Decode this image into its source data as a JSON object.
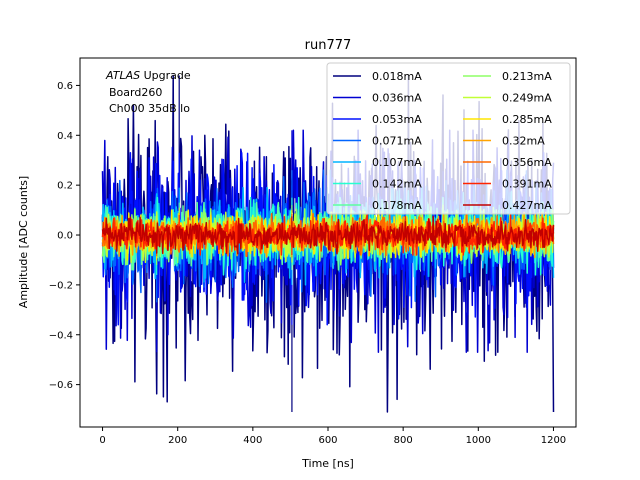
{
  "chart_data": {
    "type": "line",
    "title": "run777",
    "xlabel": "Time [ns]",
    "ylabel": "Amplitude [ADC counts]",
    "xlim": [
      -60,
      1260
    ],
    "ylim": [
      -0.77,
      0.71
    ],
    "xticks": [
      0,
      200,
      400,
      600,
      800,
      1000,
      1200
    ],
    "yticks": [
      -0.6,
      -0.4,
      -0.2,
      0.0,
      0.2,
      0.4,
      0.6
    ],
    "xtick_labels": [
      "0",
      "200",
      "400",
      "600",
      "800",
      "1000",
      "1200"
    ],
    "ytick_labels": [
      "−0.6",
      "−0.4",
      "−0.2",
      "0.0",
      "0.2",
      "0.4",
      "0.6"
    ],
    "grid": false,
    "legend_position": "top-right",
    "legend_columns": 2,
    "annotation": {
      "line1_italic": "ATLAS",
      "line1_rest": " Upgrade",
      "line2": "Board260",
      "line3": "Ch000 35dB lo"
    },
    "x_range": [
      0,
      1200
    ],
    "series": [
      {
        "name": "0.018mA",
        "color": "#00007f",
        "amplitude": 0.3,
        "peak": 0.64,
        "trough": -0.71
      },
      {
        "name": "0.036mA",
        "color": "#0000d1",
        "amplitude": 0.22,
        "peak": 0.42,
        "trough": -0.47
      },
      {
        "name": "0.053mA",
        "color": "#0010ff",
        "amplitude": 0.16,
        "peak": 0.33,
        "trough": -0.36
      },
      {
        "name": "0.071mA",
        "color": "#0064ff",
        "amplitude": 0.12,
        "peak": 0.26,
        "trough": -0.27
      },
      {
        "name": "0.107mA",
        "color": "#00b4ff",
        "amplitude": 0.09,
        "peak": 0.19,
        "trough": -0.2
      },
      {
        "name": "0.142mA",
        "color": "#26ffd1",
        "amplitude": 0.075,
        "peak": 0.15,
        "trough": -0.16
      },
      {
        "name": "0.178mA",
        "color": "#5dffa0",
        "amplitude": 0.065,
        "peak": 0.13,
        "trough": -0.14
      },
      {
        "name": "0.213mA",
        "color": "#8dff66",
        "amplitude": 0.058,
        "peak": 0.12,
        "trough": -0.12
      },
      {
        "name": "0.249mA",
        "color": "#c1ff36",
        "amplitude": 0.052,
        "peak": 0.11,
        "trough": -0.11
      },
      {
        "name": "0.285mA",
        "color": "#ffe600",
        "amplitude": 0.047,
        "peak": 0.1,
        "trough": -0.1
      },
      {
        "name": "0.32mA",
        "color": "#ffa300",
        "amplitude": 0.043,
        "peak": 0.09,
        "trough": -0.09
      },
      {
        "name": "0.356mA",
        "color": "#ff6800",
        "amplitude": 0.04,
        "peak": 0.085,
        "trough": -0.085
      },
      {
        "name": "0.391mA",
        "color": "#ff2500",
        "amplitude": 0.037,
        "peak": 0.08,
        "trough": -0.08
      },
      {
        "name": "0.427mA",
        "color": "#c20000",
        "amplitude": 0.034,
        "peak": 0.075,
        "trough": -0.075
      }
    ]
  }
}
